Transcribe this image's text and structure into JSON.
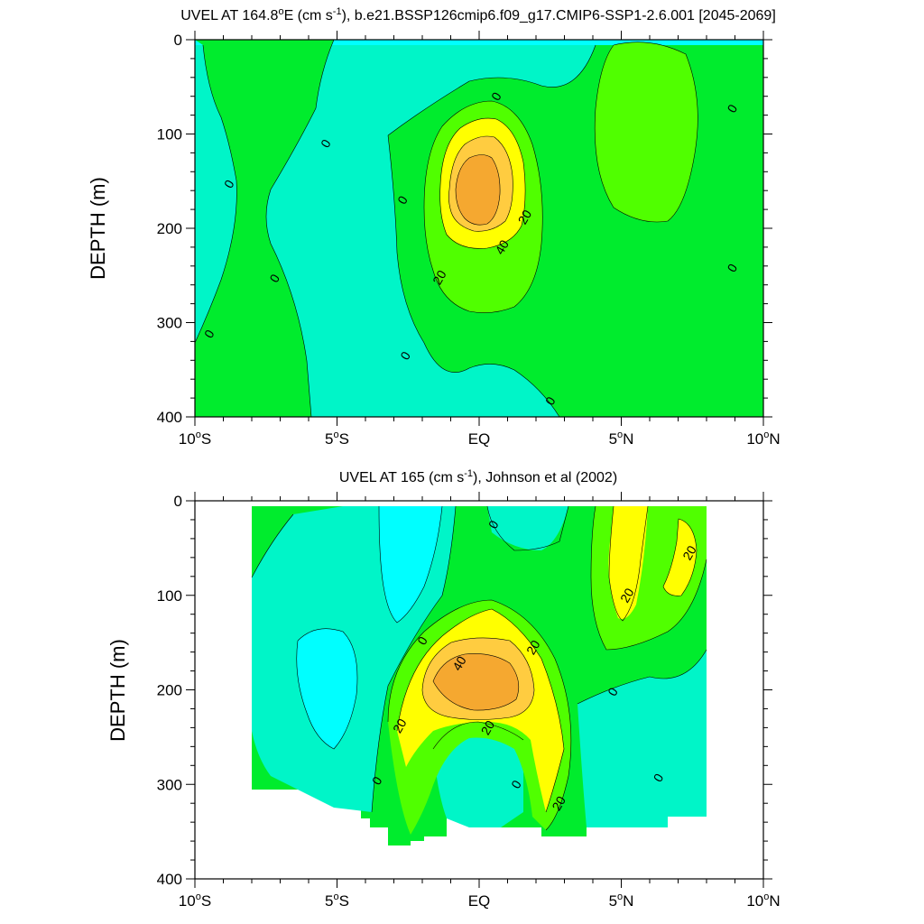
{
  "colors": {
    "cyan": "#00ffff",
    "aqua": "#00f5c8",
    "green": "#00ec2d",
    "lime": "#50ff00",
    "yellow": "#ffff00",
    "orange_light": "#ffcc40",
    "orange": "#f5a830",
    "frame": "#000000"
  },
  "chart_data": [
    {
      "type": "heatmap",
      "title": "UVEL AT 164.8°E (cm s⁻¹), b.e21.BSSP126cmip6.f09_g17.CMIP6-SSP1-2.6.001 [2045-2069]",
      "title_parts": {
        "a": "UVEL AT 164.8",
        "deg": "o",
        "b": "E (cm s",
        "sup": "-1",
        "c": "), b.e21.BSSP126cmip6.f09_g17.CMIP6-SSP1-2.6.001 [2045-2069]"
      },
      "ylabel": "DEPTH (m)",
      "xlim": [
        -10,
        10
      ],
      "ylim": [
        0,
        400
      ],
      "y_reversed": true,
      "x_ticks": [
        {
          "value": -10,
          "num": "10",
          "deg": "o",
          "hemi": "S"
        },
        {
          "value": -5,
          "num": "5",
          "deg": "o",
          "hemi": "S"
        },
        {
          "value": 0,
          "num": "EQ",
          "deg": "",
          "hemi": ""
        },
        {
          "value": 5,
          "num": "5",
          "deg": "o",
          "hemi": "N"
        },
        {
          "value": 10,
          "num": "10",
          "deg": "o",
          "hemi": "N"
        }
      ],
      "y_ticks": [
        {
          "value": 0,
          "label": "0"
        },
        {
          "value": 100,
          "label": "100"
        },
        {
          "value": 200,
          "label": "200"
        },
        {
          "value": 300,
          "label": "300"
        },
        {
          "value": 400,
          "label": "400"
        }
      ],
      "contour_labels": [
        {
          "text": "0",
          "x": 0.6,
          "y": 60
        },
        {
          "text": "0",
          "x": -5.4,
          "y": 110
        },
        {
          "text": "0",
          "x": -8.8,
          "y": 153
        },
        {
          "text": "0",
          "x": -2.7,
          "y": 170
        },
        {
          "text": "0",
          "x": 8.9,
          "y": 73
        },
        {
          "text": "0",
          "x": -7.2,
          "y": 253
        },
        {
          "text": "0",
          "x": 8.9,
          "y": 242
        },
        {
          "text": "0",
          "x": -9.5,
          "y": 312
        },
        {
          "text": "0",
          "x": -2.6,
          "y": 335
        },
        {
          "text": "0",
          "x": 2.5,
          "y": 383
        },
        {
          "text": "20",
          "x": 1.6,
          "y": 188
        },
        {
          "text": "20",
          "x": -1.4,
          "y": 252
        },
        {
          "text": "40",
          "x": 0.8,
          "y": 220
        }
      ],
      "contour_levels": [
        0,
        20,
        40
      ]
    },
    {
      "type": "heatmap",
      "title": "UVEL AT 165 (cm s⁻¹), Johnson et al (2002)",
      "title_parts": {
        "a": "UVEL AT 165 (cm s",
        "sup": "-1",
        "c": "), Johnson et al (2002)"
      },
      "ylabel": "DEPTH (m)",
      "xlim": [
        -10,
        10
      ],
      "ylim": [
        0,
        400
      ],
      "y_reversed": true,
      "data_extent_x": [
        -8,
        8
      ],
      "x_ticks": [
        {
          "value": -10,
          "num": "10",
          "deg": "o",
          "hemi": "S"
        },
        {
          "value": -5,
          "num": "5",
          "deg": "o",
          "hemi": "S"
        },
        {
          "value": 0,
          "num": "EQ",
          "deg": "",
          "hemi": ""
        },
        {
          "value": 5,
          "num": "5",
          "deg": "o",
          "hemi": "N"
        },
        {
          "value": 10,
          "num": "10",
          "deg": "o",
          "hemi": "N"
        }
      ],
      "y_ticks": [
        {
          "value": 0,
          "label": "0"
        },
        {
          "value": 100,
          "label": "100"
        },
        {
          "value": 200,
          "label": "200"
        },
        {
          "value": 300,
          "label": "300"
        },
        {
          "value": 400,
          "label": "400"
        }
      ],
      "contour_labels": [
        {
          "text": "0",
          "x": 0.5,
          "y": 25
        },
        {
          "text": "0",
          "x": -2.0,
          "y": 148
        },
        {
          "text": "0",
          "x": 4.7,
          "y": 202
        },
        {
          "text": "0",
          "x": -3.6,
          "y": 296
        },
        {
          "text": "0",
          "x": 1.3,
          "y": 300
        },
        {
          "text": "0",
          "x": 6.3,
          "y": 293
        },
        {
          "text": "20",
          "x": 7.4,
          "y": 55
        },
        {
          "text": "20",
          "x": 5.2,
          "y": 100
        },
        {
          "text": "20",
          "x": 1.9,
          "y": 155
        },
        {
          "text": "20",
          "x": -2.8,
          "y": 238
        },
        {
          "text": "20",
          "x": 0.3,
          "y": 240
        },
        {
          "text": "20",
          "x": 2.8,
          "y": 320
        },
        {
          "text": "40",
          "x": -0.7,
          "y": 172
        }
      ],
      "contour_levels": [
        0,
        20,
        40
      ]
    }
  ]
}
